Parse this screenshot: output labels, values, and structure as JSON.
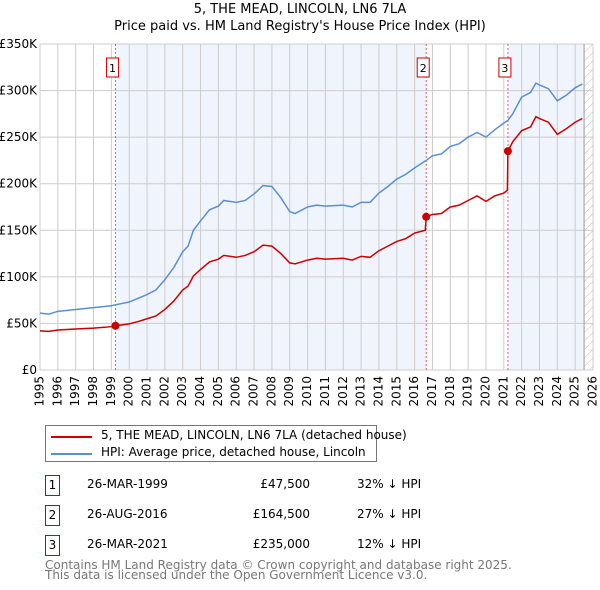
{
  "chart_data": {
    "type": "line",
    "title": "5, THE MEAD, LINCOLN, LN6 7LA",
    "subtitle": "Price paid vs. HM Land Registry's House Price Index (HPI)",
    "xlim": [
      1995,
      2026
    ],
    "ylim": [
      0,
      350000
    ],
    "x_ticks": [
      "1995",
      "1996",
      "1997",
      "1998",
      "1999",
      "2000",
      "2001",
      "2002",
      "2003",
      "2004",
      "2005",
      "2006",
      "2007",
      "2008",
      "2009",
      "2010",
      "2011",
      "2012",
      "2013",
      "2014",
      "2015",
      "2016",
      "2017",
      "2018",
      "2019",
      "2020",
      "2021",
      "2022",
      "2023",
      "2024",
      "2025",
      "2026"
    ],
    "y_ticks": [
      {
        "v": 0,
        "label": "£0"
      },
      {
        "v": 50000,
        "label": "£50K"
      },
      {
        "v": 100000,
        "label": "£100K"
      },
      {
        "v": 150000,
        "label": "£150K"
      },
      {
        "v": 200000,
        "label": "£200K"
      },
      {
        "v": 250000,
        "label": "£250K"
      },
      {
        "v": 300000,
        "label": "£300K"
      },
      {
        "v": 350000,
        "label": "£350K"
      }
    ],
    "grid": true,
    "data_end": 2025.5,
    "series": [
      {
        "name": "5, THE MEAD, LINCOLN, LN6 7LA (detached house)",
        "color": "#cc0000",
        "x": [
          1995,
          1995.5,
          1996,
          1997,
          1998,
          1999,
          1999.23,
          2000,
          2000.5,
          2001,
          2001.5,
          2002,
          2002.5,
          2003,
          2003.3,
          2003.6,
          2004,
          2004.5,
          2005,
          2005.3,
          2006,
          2006.5,
          2007,
          2007.5,
          2008,
          2008.5,
          2009,
          2009.3,
          2010,
          2010.5,
          2011,
          2012,
          2012.5,
          2013,
          2013.5,
          2014,
          2014.5,
          2015,
          2015.5,
          2016,
          2016.6,
          2016.65,
          2017,
          2017.5,
          2018,
          2018.5,
          2019,
          2019.5,
          2020,
          2020.5,
          2021,
          2021.2,
          2021.23,
          2021.5,
          2022,
          2022.5,
          2022.8,
          2023,
          2023.5,
          2024,
          2024.5,
          2025,
          2025.4
        ],
        "y": [
          42000,
          41500,
          43000,
          44000,
          45000,
          46500,
          47500,
          49500,
          52000,
          55000,
          58000,
          65000,
          74000,
          86000,
          90000,
          101000,
          108000,
          116000,
          119000,
          123000,
          121000,
          123000,
          127000,
          134000,
          133000,
          125000,
          115000,
          114000,
          118000,
          120000,
          119000,
          120000,
          118000,
          122000,
          121000,
          128000,
          133000,
          138000,
          141000,
          147000,
          150000,
          164500,
          167000,
          168000,
          175000,
          177000,
          182000,
          187000,
          181000,
          187000,
          190000,
          193000,
          235000,
          245000,
          257000,
          261000,
          272000,
          270000,
          266000,
          253000,
          259000,
          266000,
          270000
        ]
      },
      {
        "name": "HPI: Average price, detached house, Lincoln",
        "color": "#5b8fd1",
        "x": [
          1995,
          1995.5,
          1996,
          1997,
          1998,
          1999,
          1999.23,
          2000,
          2000.5,
          2001,
          2001.5,
          2002,
          2002.5,
          2003,
          2003.3,
          2003.6,
          2004,
          2004.5,
          2005,
          2005.3,
          2006,
          2006.5,
          2007,
          2007.5,
          2008,
          2008.5,
          2009,
          2009.3,
          2010,
          2010.5,
          2011,
          2012,
          2012.5,
          2013,
          2013.5,
          2014,
          2014.5,
          2015,
          2015.5,
          2016,
          2016.65,
          2017,
          2017.5,
          2018,
          2018.5,
          2019,
          2019.5,
          2020,
          2020.5,
          2021,
          2021.23,
          2021.5,
          2022,
          2022.5,
          2022.8,
          2023,
          2023.5,
          2024,
          2024.5,
          2025,
          2025.4
        ],
        "y": [
          61000,
          60000,
          63000,
          65000,
          67000,
          69000,
          70000,
          73000,
          77000,
          81000,
          86000,
          97000,
          110000,
          127000,
          133000,
          150000,
          160000,
          172000,
          176000,
          182000,
          180000,
          182000,
          189000,
          198000,
          197000,
          185000,
          170000,
          168000,
          175000,
          177000,
          176000,
          177000,
          175000,
          180000,
          180000,
          190000,
          197000,
          205000,
          210000,
          217000,
          225000,
          230000,
          232000,
          240000,
          243000,
          250000,
          255000,
          250000,
          258000,
          265000,
          268000,
          275000,
          293000,
          298000,
          308000,
          306000,
          302000,
          289000,
          295000,
          303000,
          307000
        ]
      }
    ],
    "sales": [
      {
        "label": "1",
        "x": 1999.23,
        "y": 47500,
        "date": "26-MAR-1999",
        "price": "£47,500",
        "hpi": "32% ↓ HPI"
      },
      {
        "label": "2",
        "x": 2016.65,
        "y": 164500,
        "date": "26-AUG-2016",
        "price": "£164,500",
        "hpi": "27% ↓ HPI"
      },
      {
        "label": "3",
        "x": 2021.23,
        "y": 235000,
        "date": "26-MAR-2021",
        "price": "£235,000",
        "hpi": "12% ↓ HPI"
      }
    ]
  },
  "footer": {
    "line1": "Contains HM Land Registry data © Crown copyright and database right 2025.",
    "line2": "This data is licensed under the Open Government Licence v3.0."
  }
}
